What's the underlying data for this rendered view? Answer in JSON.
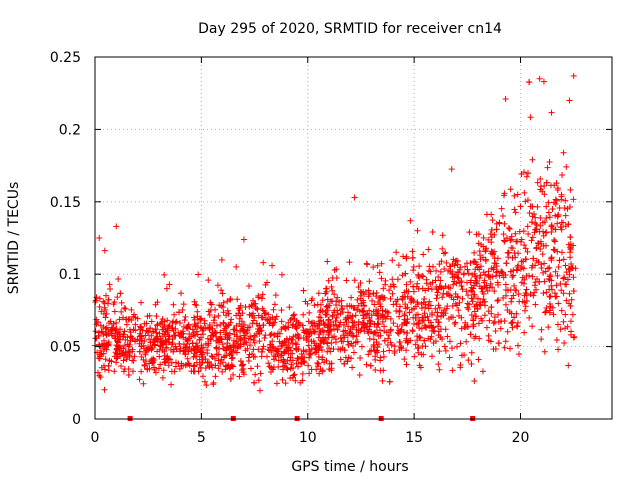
{
  "chart_data": {
    "type": "scatter",
    "title": "Day 295 of 2020, SRMTID for receiver cn14",
    "xlabel": "GPS time / hours",
    "ylabel": "SRMTID / TECUs",
    "xlim": [
      0,
      24.3
    ],
    "ylim": [
      0,
      0.25
    ],
    "xticks": [
      0,
      5,
      10,
      15,
      20
    ],
    "yticks": [
      0,
      0.05,
      0.1,
      0.15,
      0.2,
      0.25
    ],
    "xtick_labels": [
      "0",
      "5",
      "10",
      "15",
      "20"
    ],
    "ytick_labels": [
      "0",
      "0.05",
      "0.1",
      "0.15",
      "0.2",
      "0.25"
    ],
    "grid": true,
    "marker": "+",
    "color": "#ff0000",
    "series": [
      {
        "name": "SRMTID",
        "trend": {
          "x": [
            0,
            1,
            2,
            3,
            4,
            5,
            6,
            7,
            8,
            9,
            10,
            11,
            12,
            13,
            14,
            15,
            16,
            17,
            18,
            19,
            20,
            21,
            22,
            22.6
          ],
          "y": [
            0.06,
            0.055,
            0.05,
            0.052,
            0.055,
            0.05,
            0.055,
            0.058,
            0.06,
            0.05,
            0.055,
            0.065,
            0.063,
            0.065,
            0.07,
            0.075,
            0.08,
            0.08,
            0.085,
            0.1,
            0.11,
            0.12,
            0.11,
            0.09
          ]
        },
        "notable_points": [
          {
            "x": 0.2,
            "y": 0.125
          },
          {
            "x": 1.0,
            "y": 0.133
          },
          {
            "x": 7.0,
            "y": 0.124
          },
          {
            "x": 12.2,
            "y": 0.153
          },
          {
            "x": 19.3,
            "y": 0.221
          },
          {
            "x": 20.9,
            "y": 0.235
          },
          {
            "x": 21.1,
            "y": 0.233
          },
          {
            "x": 22.5,
            "y": 0.237
          },
          {
            "x": 22.3,
            "y": 0.22
          }
        ]
      }
    ],
    "gap_markers": [
      1.65,
      6.5,
      9.5,
      13.45,
      17.75
    ]
  }
}
